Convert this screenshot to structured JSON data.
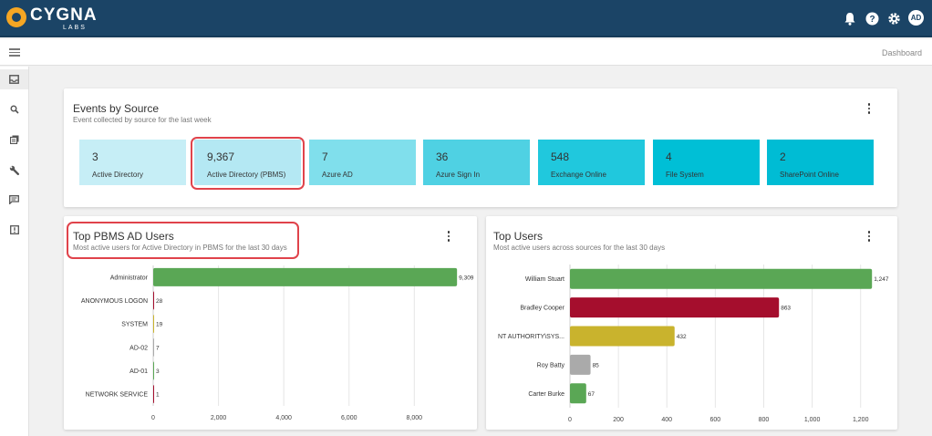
{
  "header": {
    "brand_name": "CYGNA",
    "brand_sub": "LABS",
    "icons": [
      "bell-icon",
      "help-icon",
      "gear-icon"
    ],
    "user_initials": "AD"
  },
  "subbar": {
    "breadcrumb": "Dashboard"
  },
  "sidebar": {
    "items": [
      "inbox-icon",
      "search-icon",
      "reports-icon",
      "wrench-icon",
      "messages-icon",
      "alert-icon"
    ]
  },
  "events_card": {
    "title": "Events by Source",
    "subtitle": "Event collected by source for the last week",
    "tiles": [
      {
        "count": "3",
        "label": "Active Directory",
        "color": "#c6eef6"
      },
      {
        "count": "9,367",
        "label": "Active Directory (PBMS)",
        "color": "#b4e8f3"
      },
      {
        "count": "7",
        "label": "Azure AD",
        "color": "#80dfec"
      },
      {
        "count": "36",
        "label": "Azure Sign In",
        "color": "#4fd1e3"
      },
      {
        "count": "548",
        "label": "Exchange Online",
        "color": "#20c8dd"
      },
      {
        "count": "4",
        "label": "File System",
        "color": "#00bfd6"
      },
      {
        "count": "2",
        "label": "SharePoint Online",
        "color": "#00bcd4"
      }
    ]
  },
  "pbms_card": {
    "title": "Top PBMS AD Users",
    "subtitle": "Most active users for Active Directory in PBMS for the last 30 days"
  },
  "top_users_card": {
    "title": "Top Users",
    "subtitle": "Most active users across sources for the last 30 days"
  },
  "chart_data": [
    {
      "type": "bar",
      "orientation": "horizontal",
      "categories": [
        "Administrator",
        "ANONYMOUS LOGON",
        "SYSTEM",
        "AD-02",
        "AD-01",
        "NETWORK SERVICE"
      ],
      "values": [
        9309,
        28,
        19,
        7,
        3,
        1
      ],
      "value_labels": [
        "9,309",
        "28",
        "19",
        "7",
        "3",
        "1"
      ],
      "colors": [
        "#5aa755",
        "#a50e2d",
        "#c9b32d",
        "#aaaaaa",
        "#5aa755",
        "#a50e2d"
      ],
      "xticks": [
        0,
        2000,
        4000,
        6000,
        8000
      ],
      "xtick_labels": [
        "0",
        "2,000",
        "4,000",
        "6,000",
        "8,000"
      ],
      "xlim": [
        0,
        9500
      ],
      "grid": true
    },
    {
      "type": "bar",
      "orientation": "horizontal",
      "categories": [
        "William Stuart",
        "Bradley Cooper",
        "NT AUTHORITY\\SYS...",
        "Roy Batty",
        "Carter Burke"
      ],
      "values": [
        1247,
        863,
        432,
        85,
        67
      ],
      "value_labels": [
        "1,247",
        "863",
        "432",
        "85",
        "67"
      ],
      "colors": [
        "#5aa755",
        "#a50e2d",
        "#c9b32d",
        "#aaaaaa",
        "#5aa755"
      ],
      "xticks": [
        0,
        200,
        400,
        600,
        800,
        1000,
        1200
      ],
      "xtick_labels": [
        "0",
        "200",
        "400",
        "600",
        "800",
        "1,000",
        "1,200"
      ],
      "xlim": [
        0,
        1250
      ],
      "grid": true
    }
  ]
}
